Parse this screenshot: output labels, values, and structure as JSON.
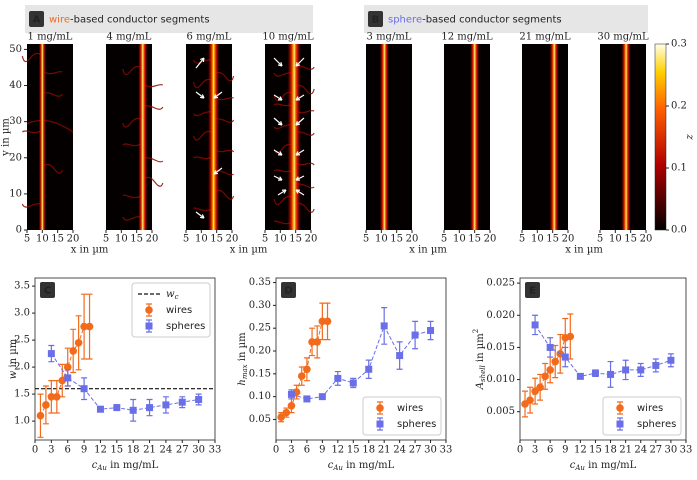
{
  "panel_a": {
    "letter": "A",
    "highlight": "wire",
    "title": "-based conductor segments",
    "highlight_color": "#f26b1d",
    "images": [
      "1 mg/mL",
      "4 mg/mL",
      "6 mg/mL",
      "10 mg/mL"
    ]
  },
  "panel_b": {
    "letter": "B",
    "highlight": "sphere",
    "title": "-based conductor segments",
    "highlight_color": "#6a6fe8",
    "images": [
      "3 mg/mL",
      "12 mg/mL",
      "21 mg/mL",
      "30 mg/mL"
    ]
  },
  "heatmap_axes": {
    "xlabel": "x in µm",
    "ylabel": "y in µm",
    "xlim": [
      5,
      20
    ],
    "xticks": [
      5,
      10,
      15,
      20
    ],
    "ylim": [
      0,
      51.5
    ],
    "yticks": [
      0,
      10,
      20,
      30,
      40,
      50
    ]
  },
  "colorbar": {
    "label": "z",
    "lim": [
      0,
      0.3
    ],
    "ticks": [
      {
        "value": 0,
        "label": "0.0"
      },
      {
        "value": 0.1,
        "label": "0.1"
      },
      0.2,
      0.3
    ]
  },
  "chart_data": [
    {
      "type": "errorbar",
      "panel_label": "C",
      "xlabel": {
        "main": "c",
        "sub": "Au",
        "rest": " in mg/mL"
      },
      "ylabel": {
        "main": "w",
        "rest": " in µm"
      },
      "xlim": [
        0,
        33
      ],
      "xticks": [
        0,
        3,
        6,
        9,
        12,
        15,
        18,
        21,
        24,
        27,
        30,
        33
      ],
      "ylim": [
        0.65,
        3.65
      ],
      "yticks": [
        {
          "value": 1,
          "label": "1.0"
        },
        1.5,
        {
          "value": 2,
          "label": "2.0"
        },
        2.5,
        {
          "value": 3,
          "label": "3.0"
        },
        3.5
      ],
      "hline": {
        "main": "w",
        "sub": "c",
        "value": 1.6
      },
      "legend": "upper right",
      "series": [
        {
          "name": "wires",
          "color": "#f26b1d",
          "marker": "circle",
          "x": [
            1,
            2,
            3,
            4,
            5,
            6,
            7,
            8,
            9,
            10
          ],
          "values": [
            1.1,
            1.3,
            1.45,
            1.45,
            1.75,
            2.0,
            2.3,
            2.45,
            2.75,
            2.75
          ],
          "errors": [
            0.4,
            0.35,
            0.3,
            0.3,
            0.3,
            0.35,
            0.4,
            0.5,
            0.6,
            0.6
          ]
        },
        {
          "name": "spheres",
          "color": "#6a6fe8",
          "marker": "square",
          "x": [
            3,
            6,
            9,
            12,
            15,
            18,
            21,
            24,
            27,
            30
          ],
          "values": [
            2.25,
            1.8,
            1.6,
            1.22,
            1.25,
            1.2,
            1.25,
            1.3,
            1.35,
            1.4
          ],
          "errors": [
            0.15,
            0.15,
            0.2,
            0.05,
            0.05,
            0.2,
            0.15,
            0.15,
            0.1,
            0.1
          ]
        }
      ]
    },
    {
      "type": "errorbar",
      "panel_label": "D",
      "xlabel": {
        "main": "c",
        "sub": "Au",
        "rest": " in mg/mL"
      },
      "ylabel": {
        "main": "h",
        "sub": "max",
        "rest": " in µm"
      },
      "xlim": [
        0,
        33
      ],
      "xticks": [
        0,
        3,
        6,
        9,
        12,
        15,
        18,
        21,
        24,
        27,
        30,
        33
      ],
      "ylim": [
        0.005,
        0.36
      ],
      "yticks": [
        0.05,
        {
          "value": 0.1,
          "label": "0.10"
        },
        0.15,
        {
          "value": 0.2,
          "label": "0.20"
        },
        0.25,
        {
          "value": 0.3,
          "label": "0.30"
        },
        0.35
      ],
      "legend": "lower right",
      "series": [
        {
          "name": "wires",
          "color": "#f26b1d",
          "marker": "circle",
          "x": [
            1,
            2,
            3,
            4,
            5,
            6,
            7,
            8,
            9,
            10
          ],
          "values": [
            0.055,
            0.065,
            0.08,
            0.11,
            0.145,
            0.16,
            0.22,
            0.22,
            0.265,
            0.265
          ],
          "errors": [
            0.01,
            0.01,
            0.015,
            0.015,
            0.02,
            0.025,
            0.03,
            0.035,
            0.04,
            0.04
          ]
        },
        {
          "name": "spheres",
          "color": "#6a6fe8",
          "marker": "square",
          "x": [
            3,
            6,
            9,
            12,
            15,
            18,
            21,
            24,
            27,
            30
          ],
          "values": [
            0.105,
            0.095,
            0.1,
            0.14,
            0.13,
            0.16,
            0.255,
            0.19,
            0.235,
            0.245
          ],
          "errors": [
            0.01,
            0.005,
            0.005,
            0.015,
            0.01,
            0.02,
            0.04,
            0.03,
            0.03,
            0.02
          ]
        }
      ]
    },
    {
      "type": "errorbar",
      "panel_label": "E",
      "xlabel": {
        "main": "c",
        "sub": "Au",
        "rest": " in mg/mL"
      },
      "ylabel": {
        "main": "A",
        "sub": "shell",
        "rest": " in µm",
        "sup": "2"
      },
      "xlim": [
        0,
        33
      ],
      "xticks": [
        0,
        3,
        6,
        9,
        12,
        15,
        18,
        21,
        24,
        27,
        30,
        33
      ],
      "ylim": [
        0.0006,
        0.0258
      ],
      "yticks": [
        0.005,
        {
          "value": 0.01,
          "label": "0.010"
        },
        0.015,
        {
          "value": 0.02,
          "label": "0.020"
        },
        0.025
      ],
      "legend": "lower right",
      "series": [
        {
          "name": "wires",
          "color": "#f26b1d",
          "marker": "circle",
          "x": [
            1,
            2,
            3,
            4,
            5,
            6,
            7,
            8,
            9,
            10
          ],
          "values": [
            0.0062,
            0.0068,
            0.0082,
            0.0088,
            0.0105,
            0.0115,
            0.0128,
            0.014,
            0.0165,
            0.0167
          ],
          "errors": [
            0.002,
            0.002,
            0.002,
            0.002,
            0.002,
            0.002,
            0.0025,
            0.003,
            0.003,
            0.0035
          ]
        },
        {
          "name": "spheres",
          "color": "#6a6fe8",
          "marker": "square",
          "x": [
            3,
            6,
            9,
            12,
            15,
            18,
            21,
            24,
            27,
            30
          ],
          "values": [
            0.0185,
            0.015,
            0.0135,
            0.0105,
            0.011,
            0.0108,
            0.0115,
            0.0115,
            0.0122,
            0.013
          ],
          "errors": [
            0.0015,
            0.0015,
            0.0015,
            0.0003,
            0.0005,
            0.002,
            0.0015,
            0.001,
            0.001,
            0.001
          ]
        }
      ]
    }
  ]
}
